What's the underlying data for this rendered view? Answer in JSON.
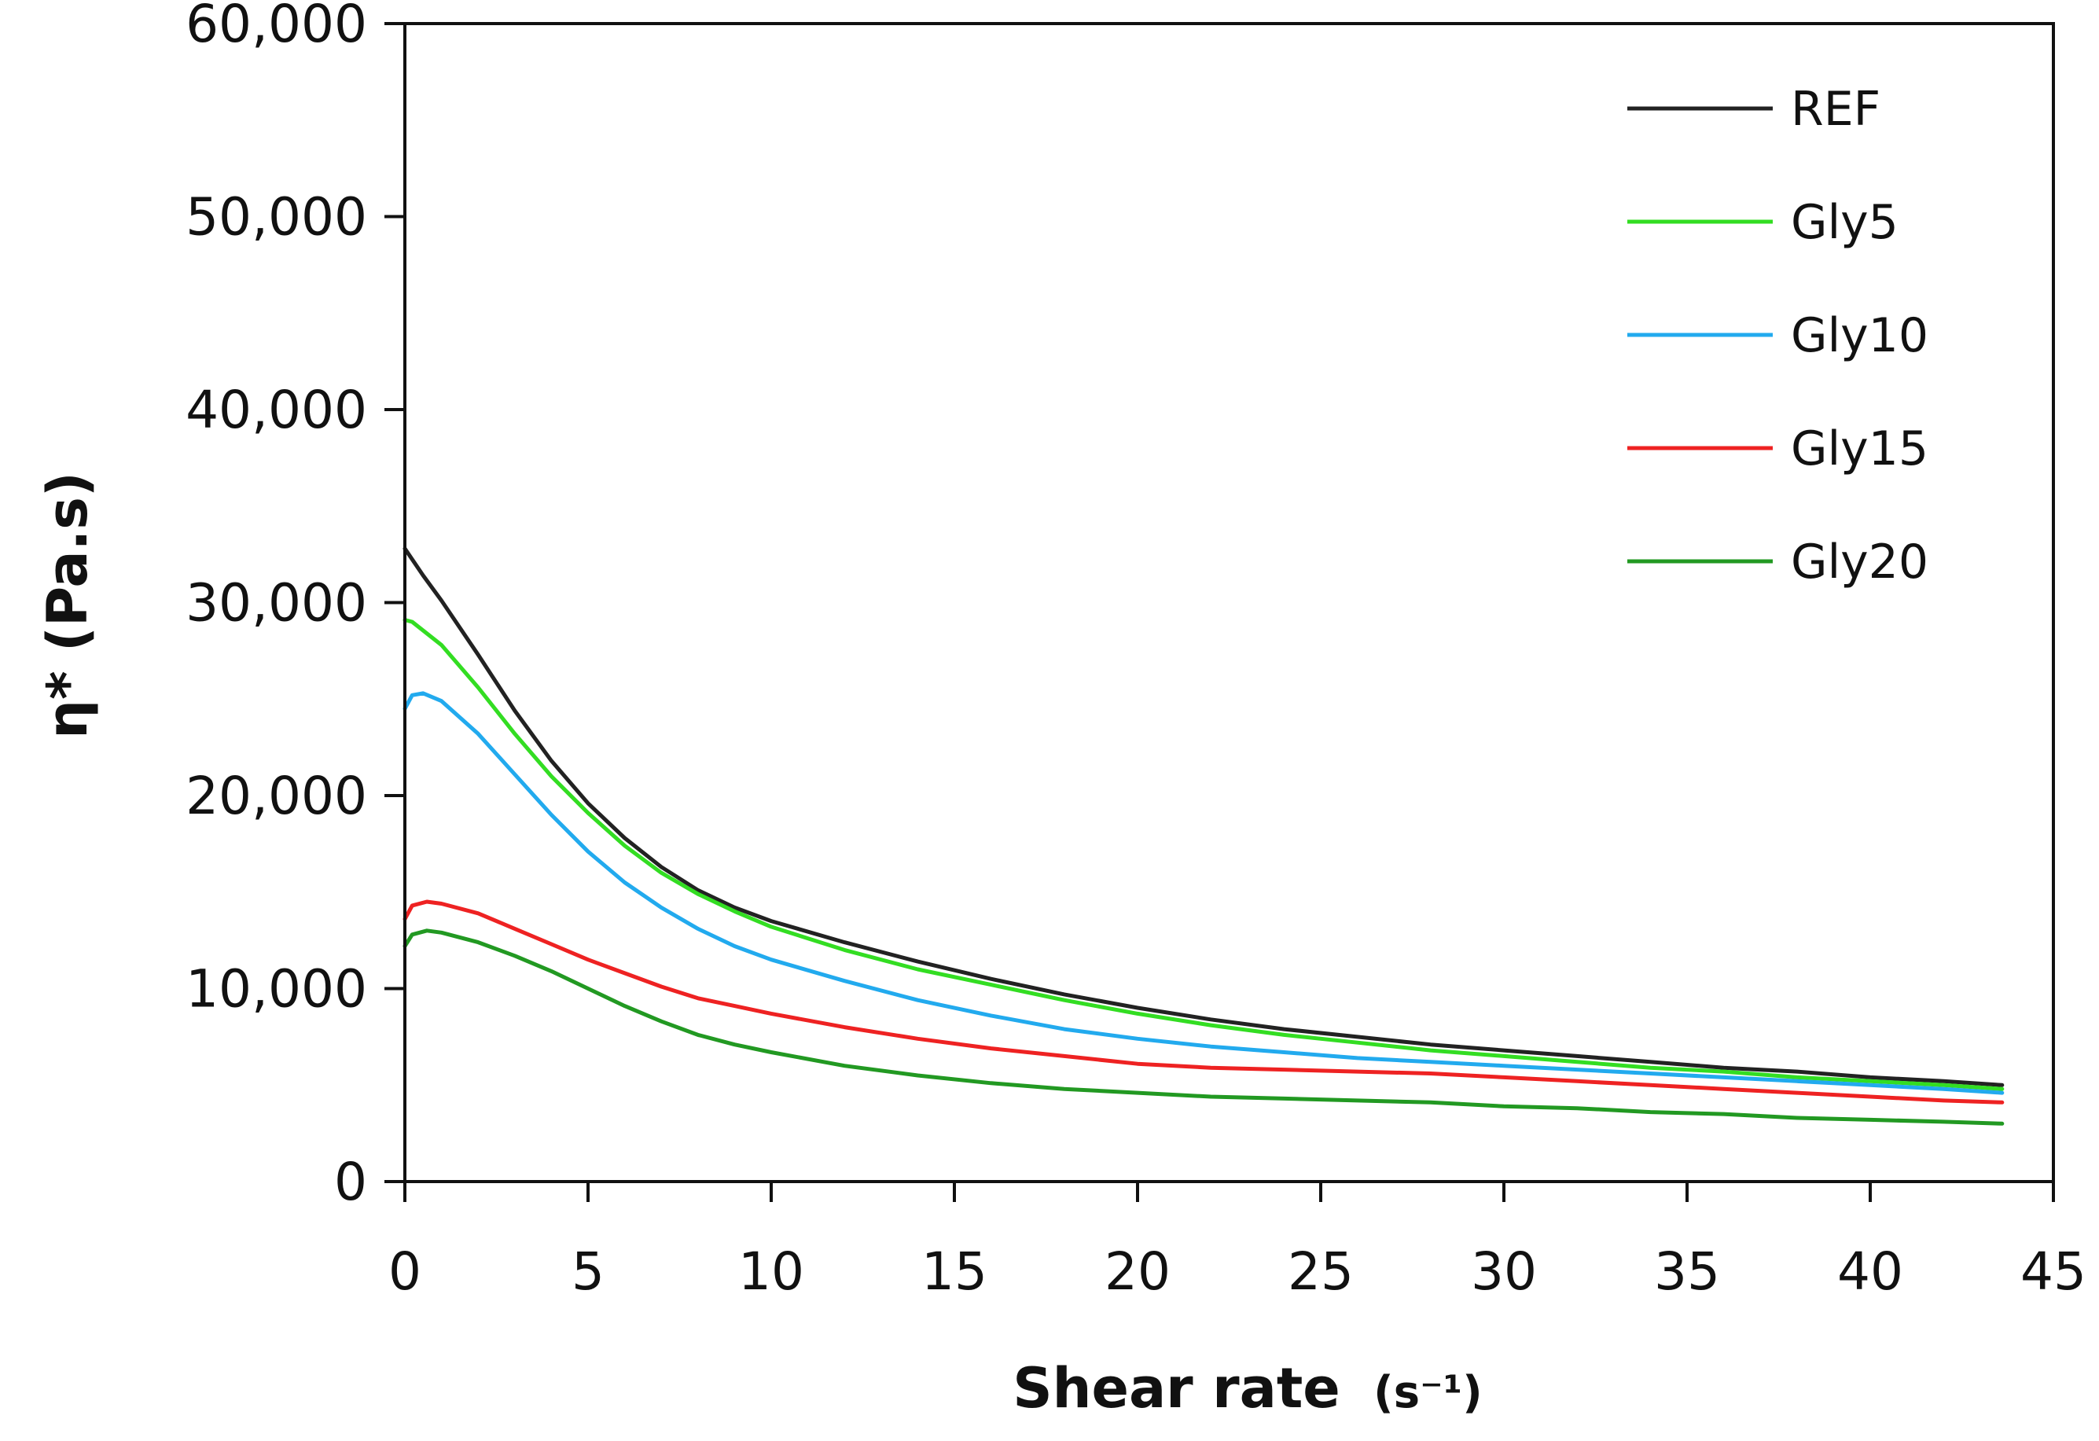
{
  "chart_data": {
    "type": "line",
    "title": "",
    "xlabel": "Shear rate",
    "xlabel_unit": "(s⁻¹)",
    "ylabel": "η* (Pa.s)",
    "xlim": [
      0,
      45
    ],
    "ylim": [
      0,
      60000
    ],
    "x_ticks": [
      0,
      5,
      10,
      15,
      20,
      25,
      30,
      35,
      40,
      45
    ],
    "x_tick_labels": [
      "0",
      "5",
      "10",
      "15",
      "20",
      "25",
      "30",
      "35",
      "40",
      "45"
    ],
    "y_ticks": [
      0,
      10000,
      20000,
      30000,
      40000,
      50000,
      60000
    ],
    "y_tick_labels": [
      "0",
      "10,000",
      "20,000",
      "30,000",
      "40,000",
      "50,000",
      "60,000"
    ],
    "grid": false,
    "legend_position": "top-right",
    "series": [
      {
        "name": "REF",
        "color": "#222222",
        "x": [
          0,
          0.5,
          1,
          2,
          3,
          4,
          5,
          6,
          7,
          8,
          9,
          10,
          12,
          14,
          16,
          18,
          20,
          22,
          24,
          26,
          28,
          30,
          32,
          34,
          36,
          38,
          40,
          42,
          43.6
        ],
        "y": [
          32800,
          31400,
          30100,
          27300,
          24400,
          21800,
          19600,
          17800,
          16300,
          15100,
          14200,
          13500,
          12400,
          11400,
          10500,
          9700,
          9000,
          8400,
          7900,
          7500,
          7100,
          6800,
          6500,
          6200,
          5900,
          5700,
          5400,
          5200,
          5000
        ]
      },
      {
        "name": "Gly5",
        "color": "#33dd22",
        "x": [
          0,
          0.2,
          1,
          2,
          3,
          4,
          5,
          6,
          7,
          8,
          9,
          10,
          12,
          14,
          16,
          18,
          20,
          22,
          24,
          26,
          28,
          30,
          32,
          34,
          36,
          38,
          40,
          42,
          43.6
        ],
        "y": [
          29100,
          29000,
          27800,
          25600,
          23200,
          21000,
          19100,
          17400,
          16000,
          14900,
          14000,
          13200,
          12000,
          11000,
          10200,
          9400,
          8700,
          8100,
          7600,
          7200,
          6800,
          6500,
          6200,
          5900,
          5700,
          5400,
          5200,
          5000,
          4800
        ]
      },
      {
        "name": "Gly10",
        "color": "#22aaee",
        "x": [
          0,
          0.2,
          0.5,
          1,
          2,
          3,
          4,
          5,
          6,
          7,
          8,
          9,
          10,
          12,
          14,
          16,
          18,
          20,
          22,
          24,
          26,
          28,
          30,
          32,
          34,
          36,
          38,
          40,
          42,
          43.6
        ],
        "y": [
          24500,
          25200,
          25300,
          24900,
          23200,
          21100,
          19000,
          17100,
          15500,
          14200,
          13100,
          12200,
          11500,
          10400,
          9400,
          8600,
          7900,
          7400,
          7000,
          6700,
          6400,
          6200,
          6000,
          5800,
          5600,
          5400,
          5200,
          5000,
          4800,
          4600
        ]
      },
      {
        "name": "Gly15",
        "color": "#ee2222",
        "x": [
          0,
          0.2,
          0.6,
          1,
          2,
          3,
          4,
          5,
          6,
          7,
          8,
          9,
          10,
          12,
          14,
          16,
          18,
          20,
          22,
          24,
          26,
          28,
          30,
          32,
          34,
          36,
          38,
          40,
          42,
          43.6
        ],
        "y": [
          13600,
          14300,
          14500,
          14400,
          13900,
          13100,
          12300,
          11500,
          10800,
          10100,
          9500,
          9100,
          8700,
          8000,
          7400,
          6900,
          6500,
          6100,
          5900,
          5800,
          5700,
          5600,
          5400,
          5200,
          5000,
          4800,
          4600,
          4400,
          4200,
          4100
        ]
      },
      {
        "name": "Gly20",
        "color": "#229922",
        "x": [
          0,
          0.2,
          0.6,
          1,
          2,
          3,
          4,
          5,
          6,
          7,
          8,
          9,
          10,
          12,
          14,
          16,
          18,
          20,
          22,
          24,
          26,
          28,
          30,
          32,
          34,
          36,
          38,
          40,
          42,
          43.6
        ],
        "y": [
          12200,
          12800,
          13000,
          12900,
          12400,
          11700,
          10900,
          10000,
          9100,
          8300,
          7600,
          7100,
          6700,
          6000,
          5500,
          5100,
          4800,
          4600,
          4400,
          4300,
          4200,
          4100,
          3900,
          3800,
          3600,
          3500,
          3300,
          3200,
          3100,
          3000
        ]
      }
    ]
  }
}
